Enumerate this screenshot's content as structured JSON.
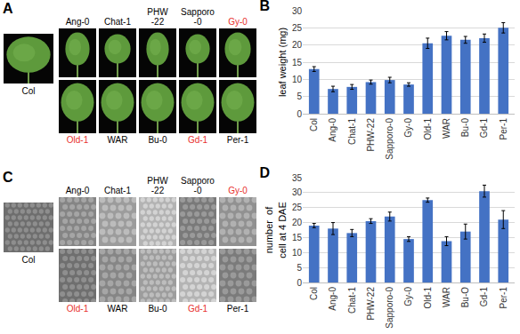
{
  "panels": [
    {
      "label": "A",
      "kind": "leaf",
      "reference": {
        "text": "Col",
        "color": "#000000"
      },
      "top_row": [
        {
          "text": "Ang-0",
          "color": "#000000"
        },
        {
          "text": "Chat-1",
          "color": "#000000"
        },
        {
          "text": "PHW\n-22",
          "color": "#000000"
        },
        {
          "text": "Sapporo\n-0",
          "color": "#000000"
        },
        {
          "text": "Gy-0",
          "color": "#e8312f"
        }
      ],
      "bottom_row": [
        {
          "text": "Old-1",
          "color": "#e8312f"
        },
        {
          "text": "WAR",
          "color": "#000000"
        },
        {
          "text": "Bu-0",
          "color": "#000000"
        },
        {
          "text": "Gd-1",
          "color": "#e8312f"
        },
        {
          "text": "Per-1",
          "color": "#000000"
        }
      ]
    },
    {
      "label": "C",
      "kind": "cell",
      "reference": {
        "text": "Col",
        "color": "#000000"
      },
      "top_row": [
        {
          "text": "Ang-0",
          "color": "#000000"
        },
        {
          "text": "Chat-1",
          "color": "#000000"
        },
        {
          "text": "PHW\n-22",
          "color": "#000000"
        },
        {
          "text": "Sapporo\n-0",
          "color": "#000000"
        },
        {
          "text": "Gy-0",
          "color": "#e8312f"
        }
      ],
      "bottom_row": [
        {
          "text": "Old-1",
          "color": "#e8312f"
        },
        {
          "text": "WAR",
          "color": "#000000"
        },
        {
          "text": "Bu-0",
          "color": "#000000"
        },
        {
          "text": "Gd-1",
          "color": "#e8312f"
        },
        {
          "text": "Per-1",
          "color": "#000000"
        }
      ]
    }
  ],
  "chart_data": [
    {
      "type": "bar",
      "title": "B",
      "y_label": "leaf weight (mg)",
      "categories": [
        "Col",
        "Ang-0",
        "Chat-1",
        "PHW-22",
        "Sapporo-0",
        "Gy-0",
        "Old-1",
        "WAR",
        "Bu-0",
        "Gd-1",
        "Per-1"
      ],
      "values": [
        13,
        7.2,
        7.8,
        9.2,
        9.8,
        8.5,
        20.5,
        22.7,
        21.5,
        22,
        25
      ],
      "errors": [
        0.7,
        0.8,
        0.7,
        0.6,
        0.8,
        0.5,
        1.5,
        1.2,
        1,
        1.2,
        1.5
      ],
      "color": "#4472c4",
      "ylim": [
        0,
        30
      ],
      "yticks": [
        0,
        5,
        10,
        15,
        20,
        25,
        30
      ],
      "grid": true
    },
    {
      "type": "bar",
      "title": "D",
      "y_label": "number  of\ncell at 4 DAE",
      "categories": [
        "Col",
        "Ang-0",
        "Chat-1",
        "PHW-22",
        "Sapporo-0",
        "Gy-0",
        "Old-1",
        "WAR",
        "Bu-O",
        "Gd-1",
        "Per-1"
      ],
      "values": [
        19,
        18,
        16.5,
        20.5,
        22,
        14.5,
        27.5,
        13.8,
        17,
        30.5,
        21
      ],
      "errors": [
        0.7,
        2,
        1.2,
        0.8,
        1.5,
        0.8,
        0.7,
        1.5,
        2.5,
        2,
        3
      ],
      "color": "#4472c4",
      "ylim": [
        0,
        35
      ],
      "yticks": [
        0,
        5,
        10,
        15,
        20,
        25,
        30,
        35
      ],
      "grid": true
    }
  ]
}
